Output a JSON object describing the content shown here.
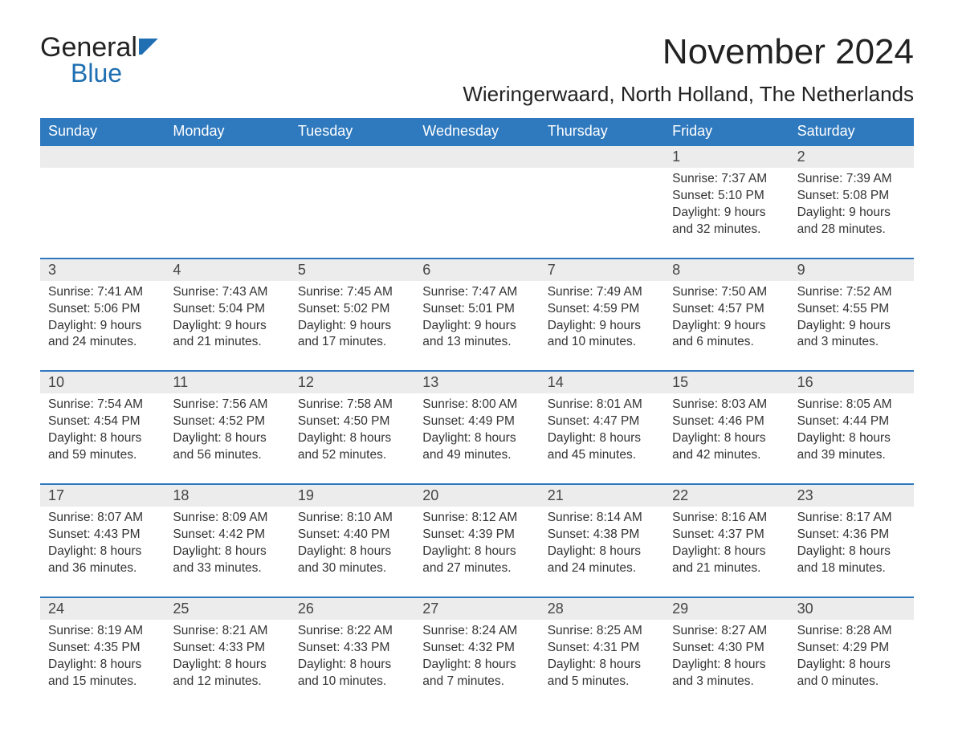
{
  "logo": {
    "general": "General",
    "blue": "Blue"
  },
  "title": "November 2024",
  "location": "Wieringerwaard, North Holland, The Netherlands",
  "day_headers": [
    "Sunday",
    "Monday",
    "Tuesday",
    "Wednesday",
    "Thursday",
    "Friday",
    "Saturday"
  ],
  "colors": {
    "header_bg": "#2f79be",
    "header_text": "#ffffff",
    "daynum_bg": "#ececec",
    "divider": "#2f79be",
    "text": "#333333",
    "logo_blue": "#1f6fb2",
    "background": "#ffffff"
  },
  "typography": {
    "title_fontsize": 44,
    "location_fontsize": 26,
    "dayhead_fontsize": 18,
    "daynum_fontsize": 18,
    "body_fontsize": 15.5,
    "font_family": "Arial"
  },
  "layout": {
    "columns": 7,
    "rows": 5,
    "leading_blanks": 5
  },
  "days": [
    {
      "n": "1",
      "sunrise": "Sunrise: 7:37 AM",
      "sunset": "Sunset: 5:10 PM",
      "dl1": "Daylight: 9 hours",
      "dl2": "and 32 minutes."
    },
    {
      "n": "2",
      "sunrise": "Sunrise: 7:39 AM",
      "sunset": "Sunset: 5:08 PM",
      "dl1": "Daylight: 9 hours",
      "dl2": "and 28 minutes."
    },
    {
      "n": "3",
      "sunrise": "Sunrise: 7:41 AM",
      "sunset": "Sunset: 5:06 PM",
      "dl1": "Daylight: 9 hours",
      "dl2": "and 24 minutes."
    },
    {
      "n": "4",
      "sunrise": "Sunrise: 7:43 AM",
      "sunset": "Sunset: 5:04 PM",
      "dl1": "Daylight: 9 hours",
      "dl2": "and 21 minutes."
    },
    {
      "n": "5",
      "sunrise": "Sunrise: 7:45 AM",
      "sunset": "Sunset: 5:02 PM",
      "dl1": "Daylight: 9 hours",
      "dl2": "and 17 minutes."
    },
    {
      "n": "6",
      "sunrise": "Sunrise: 7:47 AM",
      "sunset": "Sunset: 5:01 PM",
      "dl1": "Daylight: 9 hours",
      "dl2": "and 13 minutes."
    },
    {
      "n": "7",
      "sunrise": "Sunrise: 7:49 AM",
      "sunset": "Sunset: 4:59 PM",
      "dl1": "Daylight: 9 hours",
      "dl2": "and 10 minutes."
    },
    {
      "n": "8",
      "sunrise": "Sunrise: 7:50 AM",
      "sunset": "Sunset: 4:57 PM",
      "dl1": "Daylight: 9 hours",
      "dl2": "and 6 minutes."
    },
    {
      "n": "9",
      "sunrise": "Sunrise: 7:52 AM",
      "sunset": "Sunset: 4:55 PM",
      "dl1": "Daylight: 9 hours",
      "dl2": "and 3 minutes."
    },
    {
      "n": "10",
      "sunrise": "Sunrise: 7:54 AM",
      "sunset": "Sunset: 4:54 PM",
      "dl1": "Daylight: 8 hours",
      "dl2": "and 59 minutes."
    },
    {
      "n": "11",
      "sunrise": "Sunrise: 7:56 AM",
      "sunset": "Sunset: 4:52 PM",
      "dl1": "Daylight: 8 hours",
      "dl2": "and 56 minutes."
    },
    {
      "n": "12",
      "sunrise": "Sunrise: 7:58 AM",
      "sunset": "Sunset: 4:50 PM",
      "dl1": "Daylight: 8 hours",
      "dl2": "and 52 minutes."
    },
    {
      "n": "13",
      "sunrise": "Sunrise: 8:00 AM",
      "sunset": "Sunset: 4:49 PM",
      "dl1": "Daylight: 8 hours",
      "dl2": "and 49 minutes."
    },
    {
      "n": "14",
      "sunrise": "Sunrise: 8:01 AM",
      "sunset": "Sunset: 4:47 PM",
      "dl1": "Daylight: 8 hours",
      "dl2": "and 45 minutes."
    },
    {
      "n": "15",
      "sunrise": "Sunrise: 8:03 AM",
      "sunset": "Sunset: 4:46 PM",
      "dl1": "Daylight: 8 hours",
      "dl2": "and 42 minutes."
    },
    {
      "n": "16",
      "sunrise": "Sunrise: 8:05 AM",
      "sunset": "Sunset: 4:44 PM",
      "dl1": "Daylight: 8 hours",
      "dl2": "and 39 minutes."
    },
    {
      "n": "17",
      "sunrise": "Sunrise: 8:07 AM",
      "sunset": "Sunset: 4:43 PM",
      "dl1": "Daylight: 8 hours",
      "dl2": "and 36 minutes."
    },
    {
      "n": "18",
      "sunrise": "Sunrise: 8:09 AM",
      "sunset": "Sunset: 4:42 PM",
      "dl1": "Daylight: 8 hours",
      "dl2": "and 33 minutes."
    },
    {
      "n": "19",
      "sunrise": "Sunrise: 8:10 AM",
      "sunset": "Sunset: 4:40 PM",
      "dl1": "Daylight: 8 hours",
      "dl2": "and 30 minutes."
    },
    {
      "n": "20",
      "sunrise": "Sunrise: 8:12 AM",
      "sunset": "Sunset: 4:39 PM",
      "dl1": "Daylight: 8 hours",
      "dl2": "and 27 minutes."
    },
    {
      "n": "21",
      "sunrise": "Sunrise: 8:14 AM",
      "sunset": "Sunset: 4:38 PM",
      "dl1": "Daylight: 8 hours",
      "dl2": "and 24 minutes."
    },
    {
      "n": "22",
      "sunrise": "Sunrise: 8:16 AM",
      "sunset": "Sunset: 4:37 PM",
      "dl1": "Daylight: 8 hours",
      "dl2": "and 21 minutes."
    },
    {
      "n": "23",
      "sunrise": "Sunrise: 8:17 AM",
      "sunset": "Sunset: 4:36 PM",
      "dl1": "Daylight: 8 hours",
      "dl2": "and 18 minutes."
    },
    {
      "n": "24",
      "sunrise": "Sunrise: 8:19 AM",
      "sunset": "Sunset: 4:35 PM",
      "dl1": "Daylight: 8 hours",
      "dl2": "and 15 minutes."
    },
    {
      "n": "25",
      "sunrise": "Sunrise: 8:21 AM",
      "sunset": "Sunset: 4:33 PM",
      "dl1": "Daylight: 8 hours",
      "dl2": "and 12 minutes."
    },
    {
      "n": "26",
      "sunrise": "Sunrise: 8:22 AM",
      "sunset": "Sunset: 4:33 PM",
      "dl1": "Daylight: 8 hours",
      "dl2": "and 10 minutes."
    },
    {
      "n": "27",
      "sunrise": "Sunrise: 8:24 AM",
      "sunset": "Sunset: 4:32 PM",
      "dl1": "Daylight: 8 hours",
      "dl2": "and 7 minutes."
    },
    {
      "n": "28",
      "sunrise": "Sunrise: 8:25 AM",
      "sunset": "Sunset: 4:31 PM",
      "dl1": "Daylight: 8 hours",
      "dl2": "and 5 minutes."
    },
    {
      "n": "29",
      "sunrise": "Sunrise: 8:27 AM",
      "sunset": "Sunset: 4:30 PM",
      "dl1": "Daylight: 8 hours",
      "dl2": "and 3 minutes."
    },
    {
      "n": "30",
      "sunrise": "Sunrise: 8:28 AM",
      "sunset": "Sunset: 4:29 PM",
      "dl1": "Daylight: 8 hours",
      "dl2": "and 0 minutes."
    }
  ]
}
